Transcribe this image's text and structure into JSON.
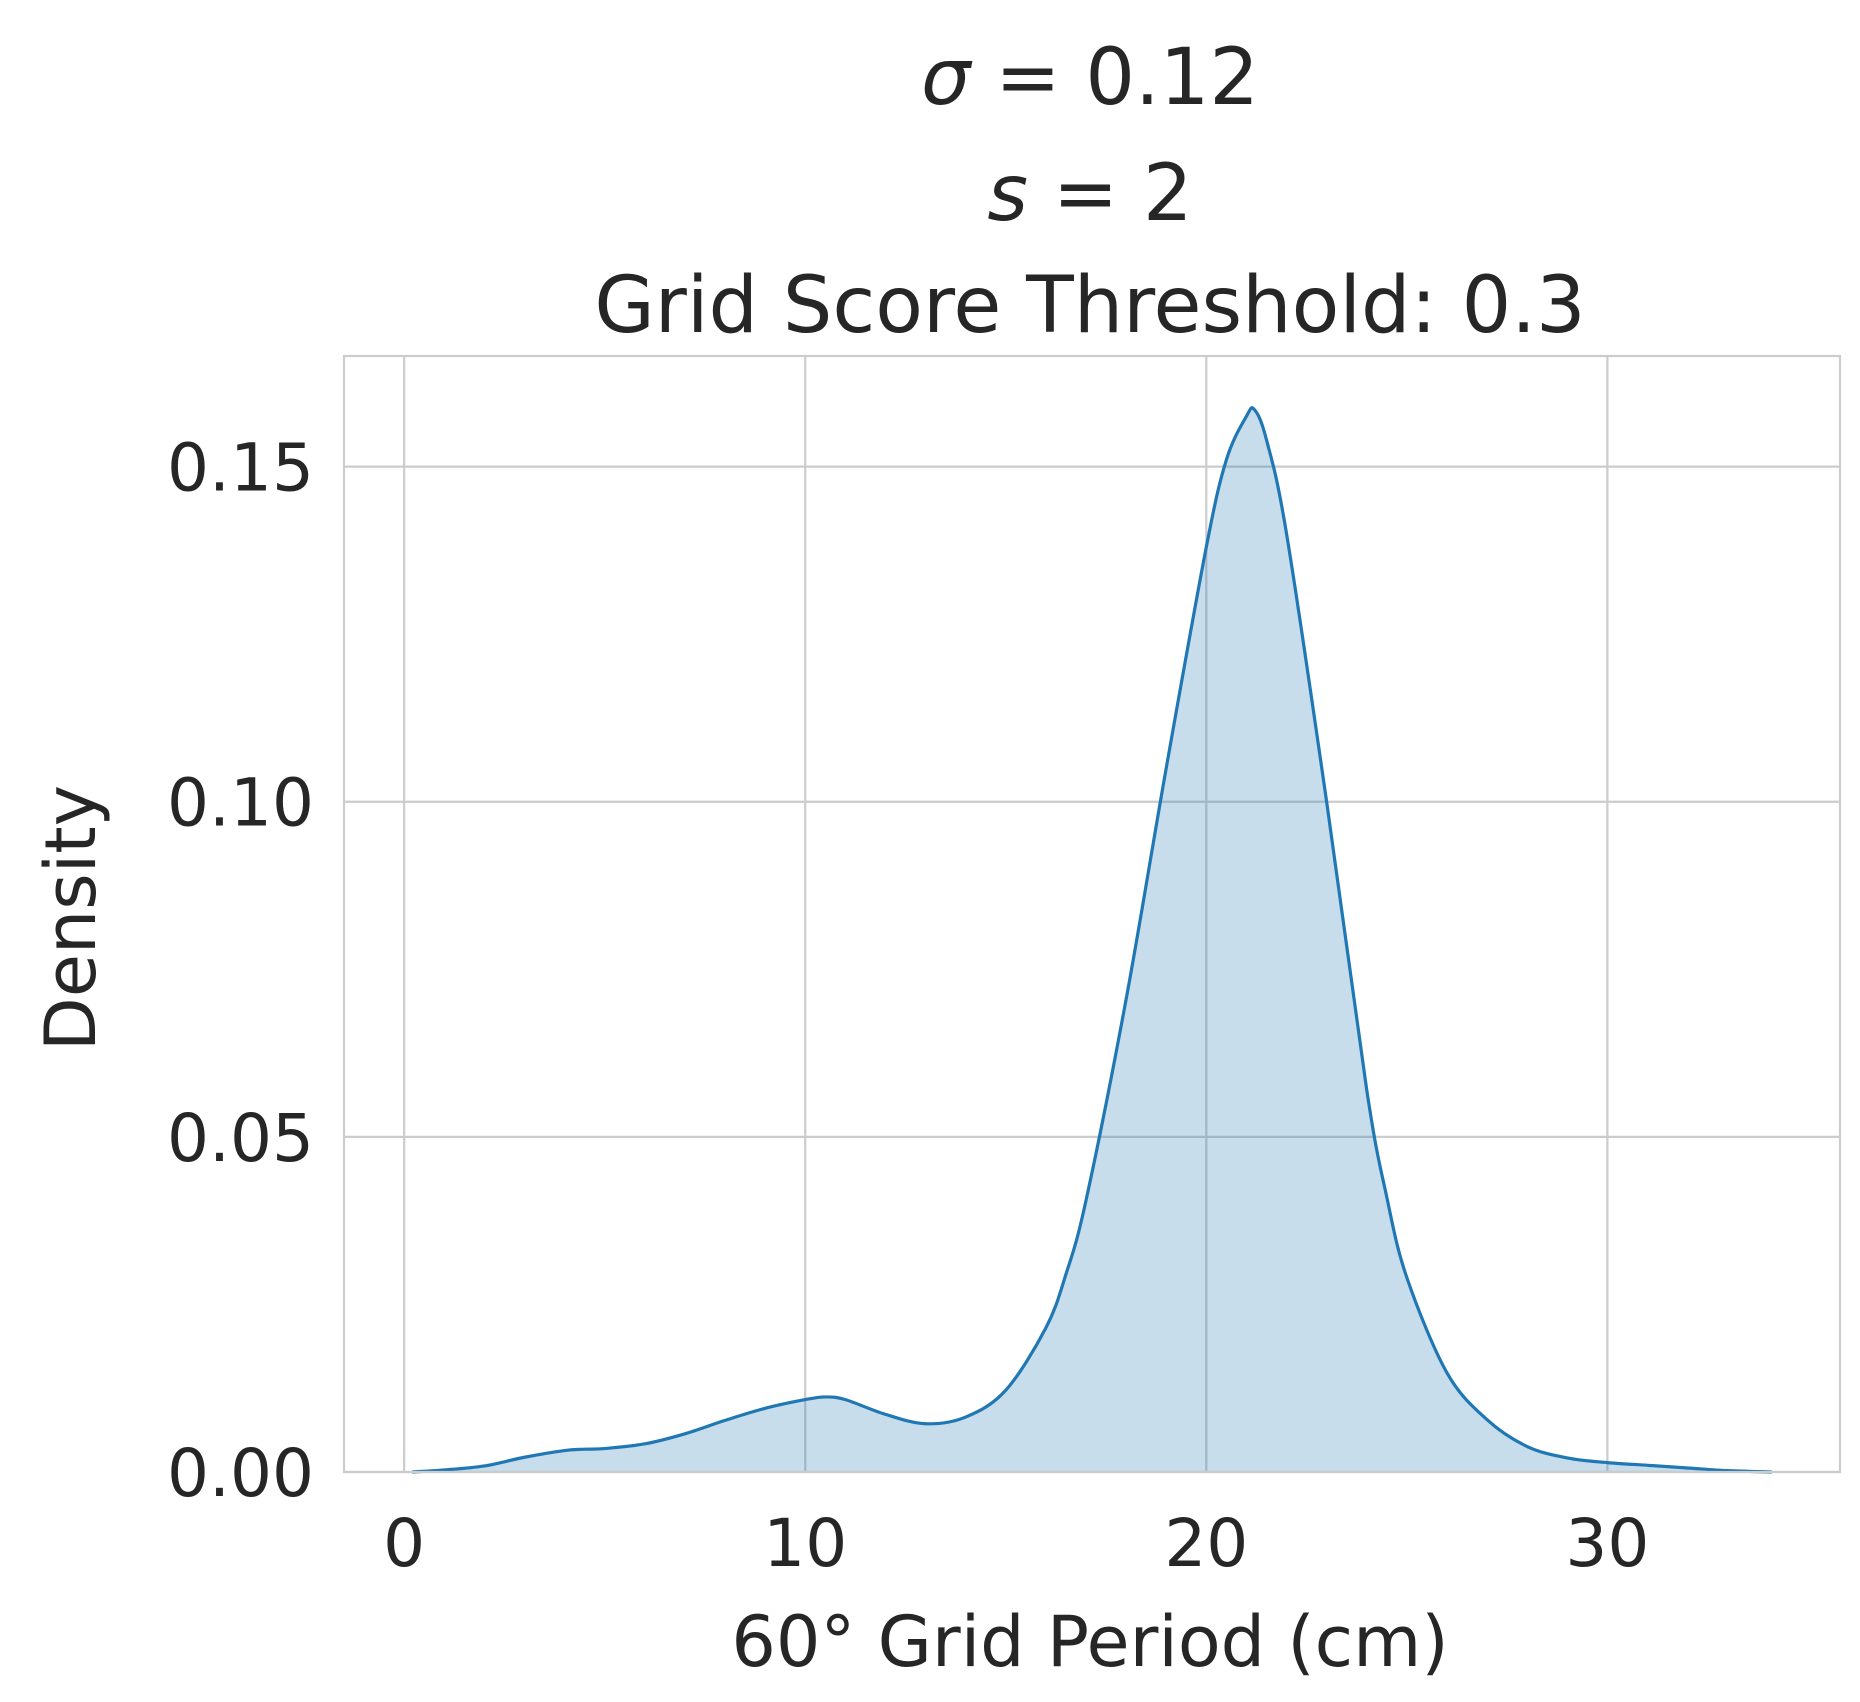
{
  "chart_data": {
    "type": "area",
    "title_lines": [
      {
        "symbol": "σ",
        "rest": " = 0.12"
      },
      {
        "symbol": "s",
        "rest": " = 2"
      },
      {
        "symbol": "",
        "rest": "Grid Score Threshold: 0.3"
      }
    ],
    "xlabel": "60° Grid Period (cm)",
    "ylabel": "Density",
    "xlim": [
      -1.5,
      35.8
    ],
    "ylim": [
      0,
      0.1665
    ],
    "x_ticks": [
      0,
      10,
      20,
      30
    ],
    "x_tick_labels": [
      "0",
      "10",
      "20",
      "30"
    ],
    "y_ticks": [
      0,
      0.05,
      0.1,
      0.15
    ],
    "y_tick_labels": [
      "0.00",
      "0.05",
      "0.10",
      "0.15"
    ],
    "grid": true,
    "series": [
      {
        "x": [
          0.2,
          1,
          2,
          3,
          4,
          4.5,
          5,
          6,
          7,
          8,
          9,
          10,
          10.5,
          11,
          12,
          13,
          14,
          15,
          16,
          16.5,
          17,
          18,
          19,
          20,
          20.5,
          21,
          21.2,
          21.5,
          22,
          23,
          24,
          24.5,
          25,
          26,
          27,
          28,
          29,
          30,
          31,
          32,
          33,
          34.1
        ],
        "y": [
          0.0,
          0.0003,
          0.0009,
          0.0022,
          0.0032,
          0.0034,
          0.0035,
          0.0042,
          0.0057,
          0.0077,
          0.0095,
          0.0108,
          0.0112,
          0.0108,
          0.0086,
          0.0072,
          0.0082,
          0.0122,
          0.0215,
          0.0295,
          0.0405,
          0.0705,
          0.105,
          0.138,
          0.151,
          0.1575,
          0.1585,
          0.154,
          0.14,
          0.1,
          0.057,
          0.041,
          0.029,
          0.0148,
          0.0078,
          0.0038,
          0.0021,
          0.0014,
          0.001,
          0.0006,
          0.0002,
          0.0
        ]
      }
    ],
    "colors": {
      "line": "#1f77b4",
      "fill": "#1f77b4",
      "fill_opacity": 0.25,
      "grid": "#cccccc",
      "text": "#262626"
    }
  }
}
